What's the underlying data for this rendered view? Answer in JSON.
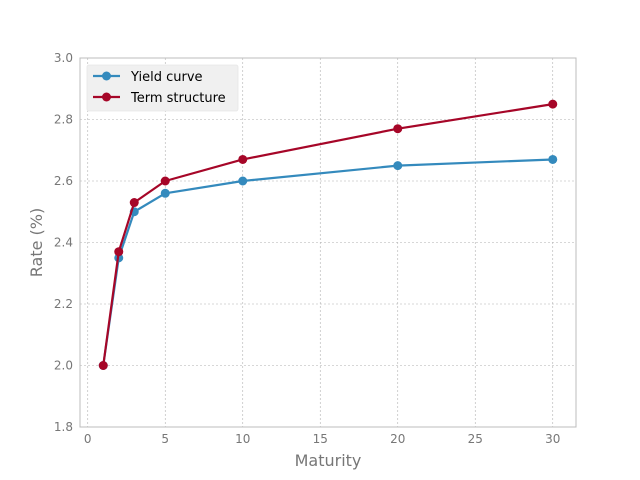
{
  "chart_data": {
    "type": "line",
    "title": "",
    "xlabel": "Maturity",
    "ylabel": "Rate (%)",
    "xlim": [
      -0.5,
      31.5
    ],
    "ylim": [
      1.8,
      3.0
    ],
    "xticks": [
      0,
      5,
      10,
      15,
      20,
      25,
      30
    ],
    "yticks": [
      1.8,
      2.0,
      2.2,
      2.4,
      2.6,
      2.8,
      3.0
    ],
    "grid": true,
    "legend_position": "top-left",
    "series": [
      {
        "name": "Yield curve",
        "color": "#348abd",
        "x": [
          1,
          2,
          3,
          5,
          10,
          20,
          30
        ],
        "y": [
          2.0,
          2.35,
          2.5,
          2.56,
          2.6,
          2.65,
          2.67
        ]
      },
      {
        "name": "Term structure",
        "color": "#a60628",
        "x": [
          1,
          2,
          3,
          5,
          10,
          20,
          30
        ],
        "y": [
          2.0,
          2.37,
          2.53,
          2.6,
          2.67,
          2.77,
          2.85
        ]
      }
    ]
  }
}
